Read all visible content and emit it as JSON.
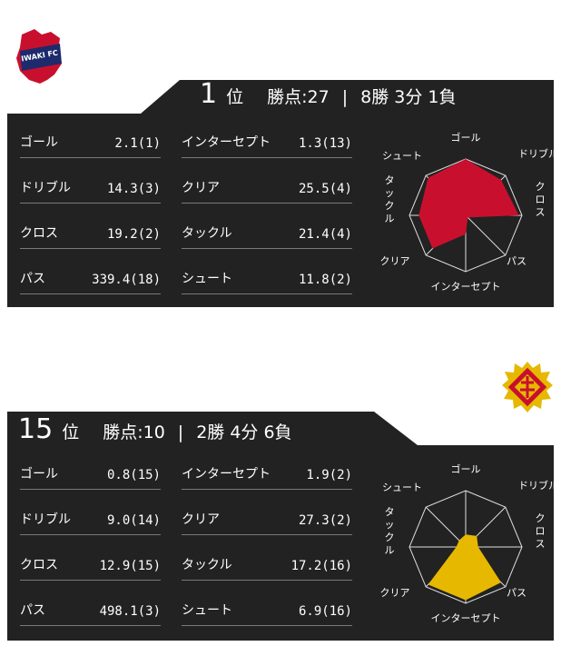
{
  "axes": [
    "ゴール",
    "ドリブル",
    "クロス",
    "パス",
    "インターセプト",
    "クリア",
    "タックル",
    "シュート"
  ],
  "teams": [
    {
      "logo": "iwaki-fc-logo",
      "logo_text": "IWAKI FC",
      "rank_num": "1",
      "rank_unit": "位",
      "points": "勝点:27",
      "record": "8勝 3分 1負",
      "radar_color": "#c8102e",
      "radar_ranks": [
        1,
        3,
        2,
        18,
        13,
        4,
        4,
        2
      ],
      "stats": [
        {
          "label": "ゴール",
          "value": "2.1(1)"
        },
        {
          "label": "ドリブル",
          "value": "14.3(3)"
        },
        {
          "label": "クロス",
          "value": "19.2(2)"
        },
        {
          "label": "パス",
          "value": "339.4(18)"
        },
        {
          "label": "インターセプト",
          "value": "1.3(13)"
        },
        {
          "label": "クリア",
          "value": "25.5(4)"
        },
        {
          "label": "タックル",
          "value": "21.4(4)"
        },
        {
          "label": "シュート",
          "value": "11.8(2)"
        }
      ]
    },
    {
      "logo": "crest-logo",
      "rank_num": "15",
      "rank_unit": "位",
      "points": "勝点:10",
      "record": "2勝 4分 6負",
      "radar_color": "#e6b800",
      "radar_ranks": [
        15,
        14,
        15,
        3,
        2,
        2,
        16,
        16
      ],
      "stats": [
        {
          "label": "ゴール",
          "value": "0.8(15)"
        },
        {
          "label": "ドリブル",
          "value": "9.0(14)"
        },
        {
          "label": "クロス",
          "value": "12.9(15)"
        },
        {
          "label": "パス",
          "value": "498.1(3)"
        },
        {
          "label": "インターセプト",
          "value": "1.9(2)"
        },
        {
          "label": "クリア",
          "value": "27.3(2)"
        },
        {
          "label": "タックル",
          "value": "17.2(16)"
        },
        {
          "label": "シュート",
          "value": "6.9(16)"
        }
      ]
    }
  ]
}
